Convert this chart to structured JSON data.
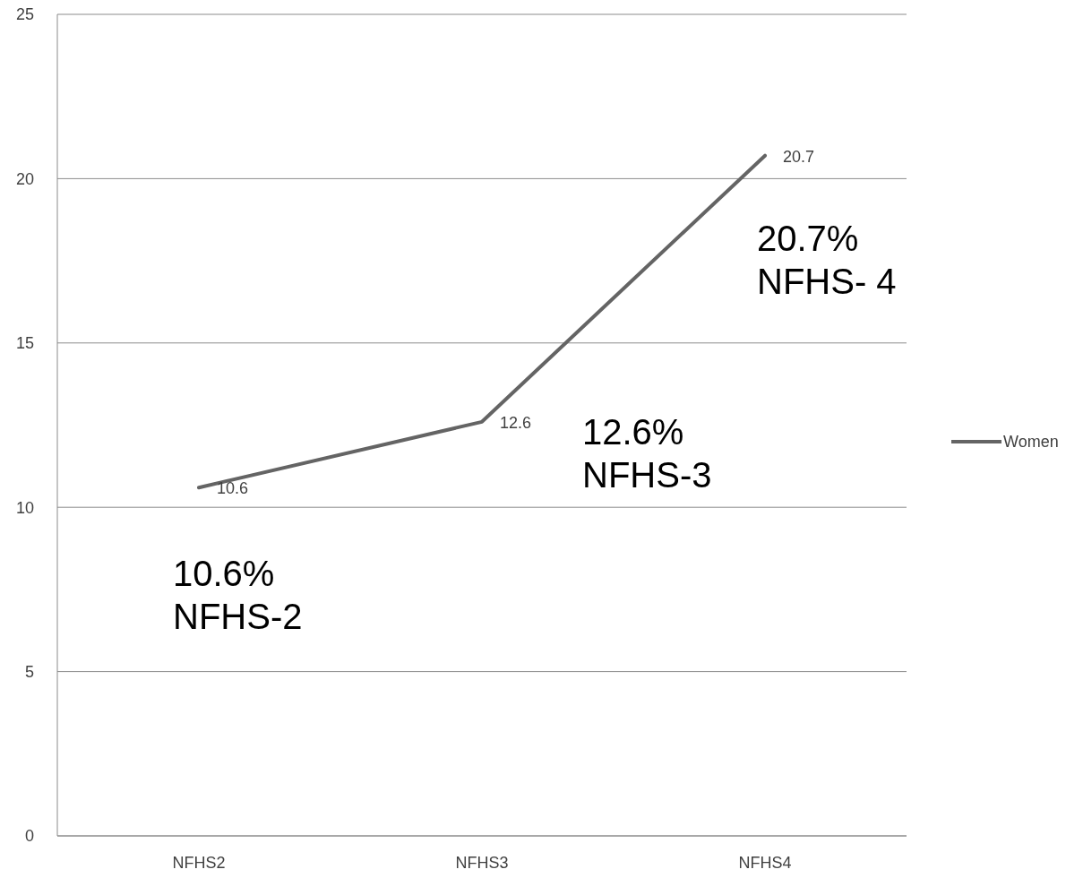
{
  "chart_data": {
    "type": "line",
    "categories": [
      "NFHS2",
      "NFHS3",
      "NFHS4"
    ],
    "series": [
      {
        "name": "Women",
        "color": "#646464",
        "values": [
          10.6,
          12.6,
          20.7
        ]
      }
    ],
    "ylim": [
      0,
      25
    ],
    "yticks": [
      0,
      5,
      10,
      15,
      20,
      25
    ],
    "grid": "y",
    "legend": "right",
    "data_labels": true,
    "marker": "none",
    "line_style": "solid",
    "annotations": [
      {
        "text": "10.6%\nNFHS-2",
        "x": "NFHS2",
        "y": 10.6
      },
      {
        "text": "12.6%\nNFHS-3",
        "x": "NFHS3",
        "y": 12.6
      },
      {
        "text": "20.7%\nNFHS- 4",
        "x": "NFHS4",
        "y": 20.7
      }
    ]
  }
}
